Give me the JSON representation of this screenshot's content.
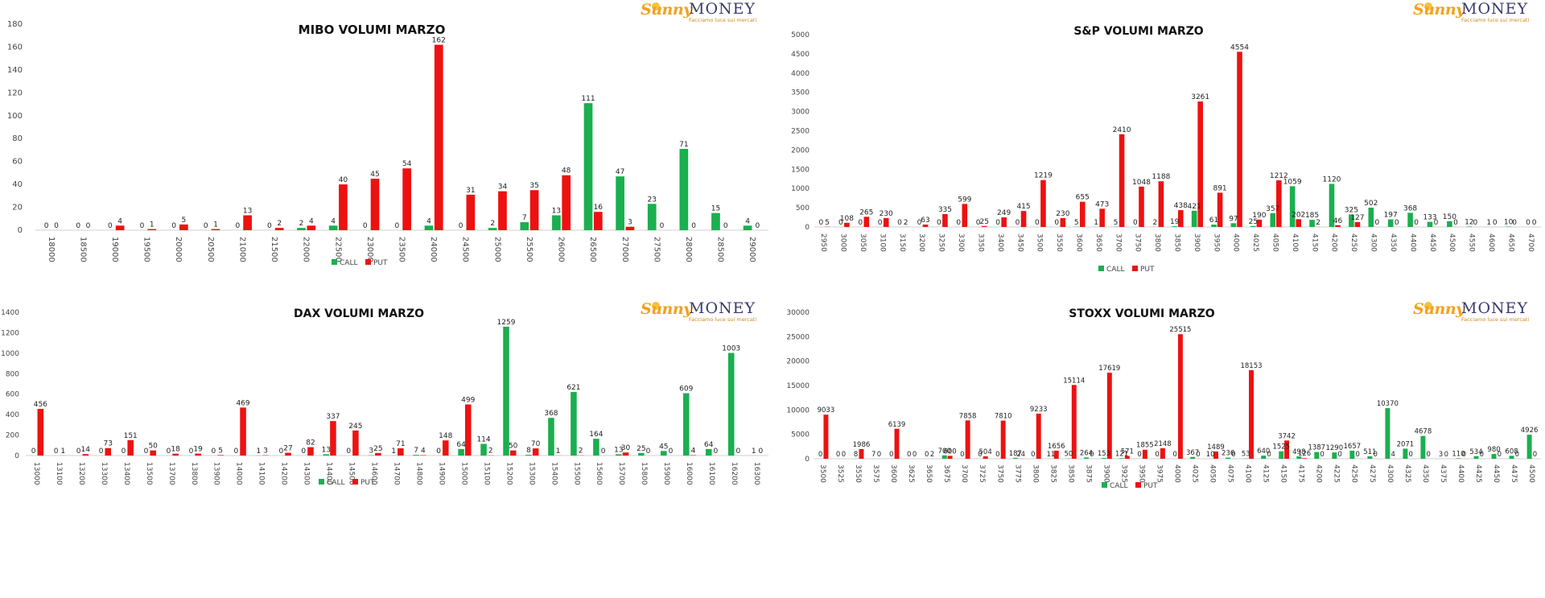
{
  "logo": {
    "sunny": "Sunny",
    "money": "MONEY",
    "tagline": "Facciamo luce sui mercati"
  },
  "colors": {
    "call": "#1aaf4f",
    "put": "#ee1111"
  },
  "chart_data": [
    {
      "type": "bar",
      "title": "MIBO VOLUMI MARZO",
      "categories": [
        "18000",
        "18500",
        "19000",
        "19500",
        "20000",
        "20500",
        "21000",
        "21500",
        "22000",
        "22500",
        "23000",
        "23500",
        "24000",
        "24500",
        "25000",
        "25500",
        "26000",
        "26500",
        "27000",
        "27500",
        "28000",
        "28500",
        "29000"
      ],
      "series": [
        {
          "name": "CALL",
          "values": [
            0,
            0,
            0,
            0,
            0,
            0,
            0,
            0,
            2,
            4,
            0,
            0,
            4,
            0,
            2,
            7,
            13,
            111,
            47,
            23,
            71,
            15,
            4
          ]
        },
        {
          "name": "PUT",
          "values": [
            0,
            0,
            4,
            1,
            5,
            1,
            13,
            2,
            4,
            40,
            45,
            54,
            162,
            31,
            34,
            35,
            48,
            16,
            3,
            0,
            0,
            0,
            0
          ]
        }
      ],
      "ylim": [
        0,
        180
      ],
      "yticks": [
        0,
        20,
        40,
        60,
        80,
        100,
        120,
        140,
        160,
        180
      ],
      "legend": "bottom"
    },
    {
      "type": "bar",
      "title": "S&P VOLUMI MARZO",
      "categories": [
        "2950",
        "3000",
        "3050",
        "3100",
        "3150",
        "3200",
        "3250",
        "3300",
        "3350",
        "3400",
        "3450",
        "3500",
        "3550",
        "3600",
        "3650",
        "3700",
        "3750",
        "3800",
        "3850",
        "3900",
        "3950",
        "4000",
        "4025",
        "4050",
        "4100",
        "4150",
        "4200",
        "4250",
        "4300",
        "4350",
        "4400",
        "4450",
        "4500",
        "4550",
        "4600",
        "4650",
        "4700"
      ],
      "series": [
        {
          "name": "CALL",
          "values": [
            0,
            0,
            0,
            0,
            0,
            0,
            0,
            0,
            0,
            0,
            0,
            0,
            0,
            5,
            1,
            5,
            0,
            2,
            19,
            421,
            61,
            97,
            25,
            357,
            1059,
            185,
            1120,
            325,
            502,
            197,
            368,
            133,
            150,
            12,
            1,
            10,
            0
          ]
        },
        {
          "name": "PUT",
          "values": [
            5,
            108,
            265,
            230,
            2,
            63,
            335,
            599,
            25,
            249,
            415,
            1219,
            230,
            655,
            473,
            2410,
            1048,
            1188,
            438,
            3261,
            891,
            4554,
            190,
            1212,
            202,
            2,
            46,
            127,
            0,
            0,
            0,
            0,
            0,
            0,
            0,
            0,
            0
          ]
        }
      ],
      "ylim": [
        0,
        5000
      ],
      "yticks": [
        0,
        500,
        1000,
        1500,
        2000,
        2500,
        3000,
        3500,
        4000,
        4500,
        5000
      ],
      "legend": "bottom"
    },
    {
      "type": "bar",
      "title": "DAX VOLUMI MARZO",
      "categories": [
        "13000",
        "13100",
        "13200",
        "13300",
        "13400",
        "13500",
        "13700",
        "13800",
        "13900",
        "14000",
        "14100",
        "14200",
        "14300",
        "14400",
        "14500",
        "14600",
        "14700",
        "14800",
        "14900",
        "15000",
        "15100",
        "15200",
        "15300",
        "15400",
        "15500",
        "15600",
        "15700",
        "15800",
        "15900",
        "16000",
        "16100",
        "16200",
        "16300"
      ],
      "series": [
        {
          "name": "CALL",
          "values": [
            0,
            0,
            0,
            0,
            0,
            0,
            0,
            0,
            0,
            0,
            1,
            0,
            0,
            13,
            0,
            3,
            1,
            7,
            0,
            64,
            114,
            1259,
            8,
            368,
            621,
            164,
            13,
            25,
            45,
            609,
            64,
            1003,
            1
          ]
        },
        {
          "name": "PUT",
          "values": [
            456,
            1,
            14,
            73,
            151,
            50,
            18,
            19,
            5,
            469,
            3,
            27,
            82,
            337,
            245,
            25,
            71,
            4,
            148,
            499,
            2,
            50,
            70,
            1,
            2,
            0,
            30,
            0,
            0,
            4,
            0,
            0,
            0
          ]
        }
      ],
      "ylim": [
        0,
        1400
      ],
      "yticks": [
        0,
        200,
        400,
        600,
        800,
        1000,
        1200,
        1400
      ],
      "legend": "bottom"
    },
    {
      "type": "bar",
      "title": "STOXX VOLUMI MARZO",
      "categories": [
        "3500",
        "3525",
        "3550",
        "3575",
        "3600",
        "3625",
        "3650",
        "3675",
        "3700",
        "3725",
        "3750",
        "3775",
        "3800",
        "3825",
        "3850",
        "3875",
        "3900",
        "3925",
        "3950",
        "3975",
        "4000",
        "4025",
        "4050",
        "4075",
        "4100",
        "4125",
        "4150",
        "4175",
        "4200",
        "4225",
        "4250",
        "4275",
        "4300",
        "4325",
        "4350",
        "4375",
        "4400",
        "4425",
        "4450",
        "4475",
        "4500"
      ],
      "series": [
        {
          "name": "CALL",
          "values": [
            0,
            0,
            8,
            7,
            0,
            0,
            0,
            700,
            0,
            0,
            0,
            187,
            0,
            11,
            50,
            264,
            153,
            121,
            0,
            0,
            0,
            367,
            10,
            236,
            53,
            640,
            1525,
            498,
            1387,
            1290,
            1657,
            511,
            10370,
            2071,
            4678,
            3,
            110,
            534,
            980,
            608,
            4926
          ]
        },
        {
          "name": "PUT",
          "values": [
            9033,
            0,
            1986,
            0,
            6139,
            0,
            2,
            600,
            7858,
            504,
            7810,
            24,
            9233,
            1656,
            15114,
            0,
            17619,
            571,
            1855,
            2148,
            25515,
            0,
            1489,
            0,
            18153,
            0,
            3742,
            126,
            0,
            0,
            0,
            0,
            4,
            0,
            0,
            0,
            0,
            0,
            0,
            0,
            0
          ]
        }
      ],
      "ylim": [
        0,
        30000
      ],
      "yticks": [
        0,
        5000,
        10000,
        15000,
        20000,
        25000,
        30000
      ],
      "legend": "bottom"
    }
  ]
}
